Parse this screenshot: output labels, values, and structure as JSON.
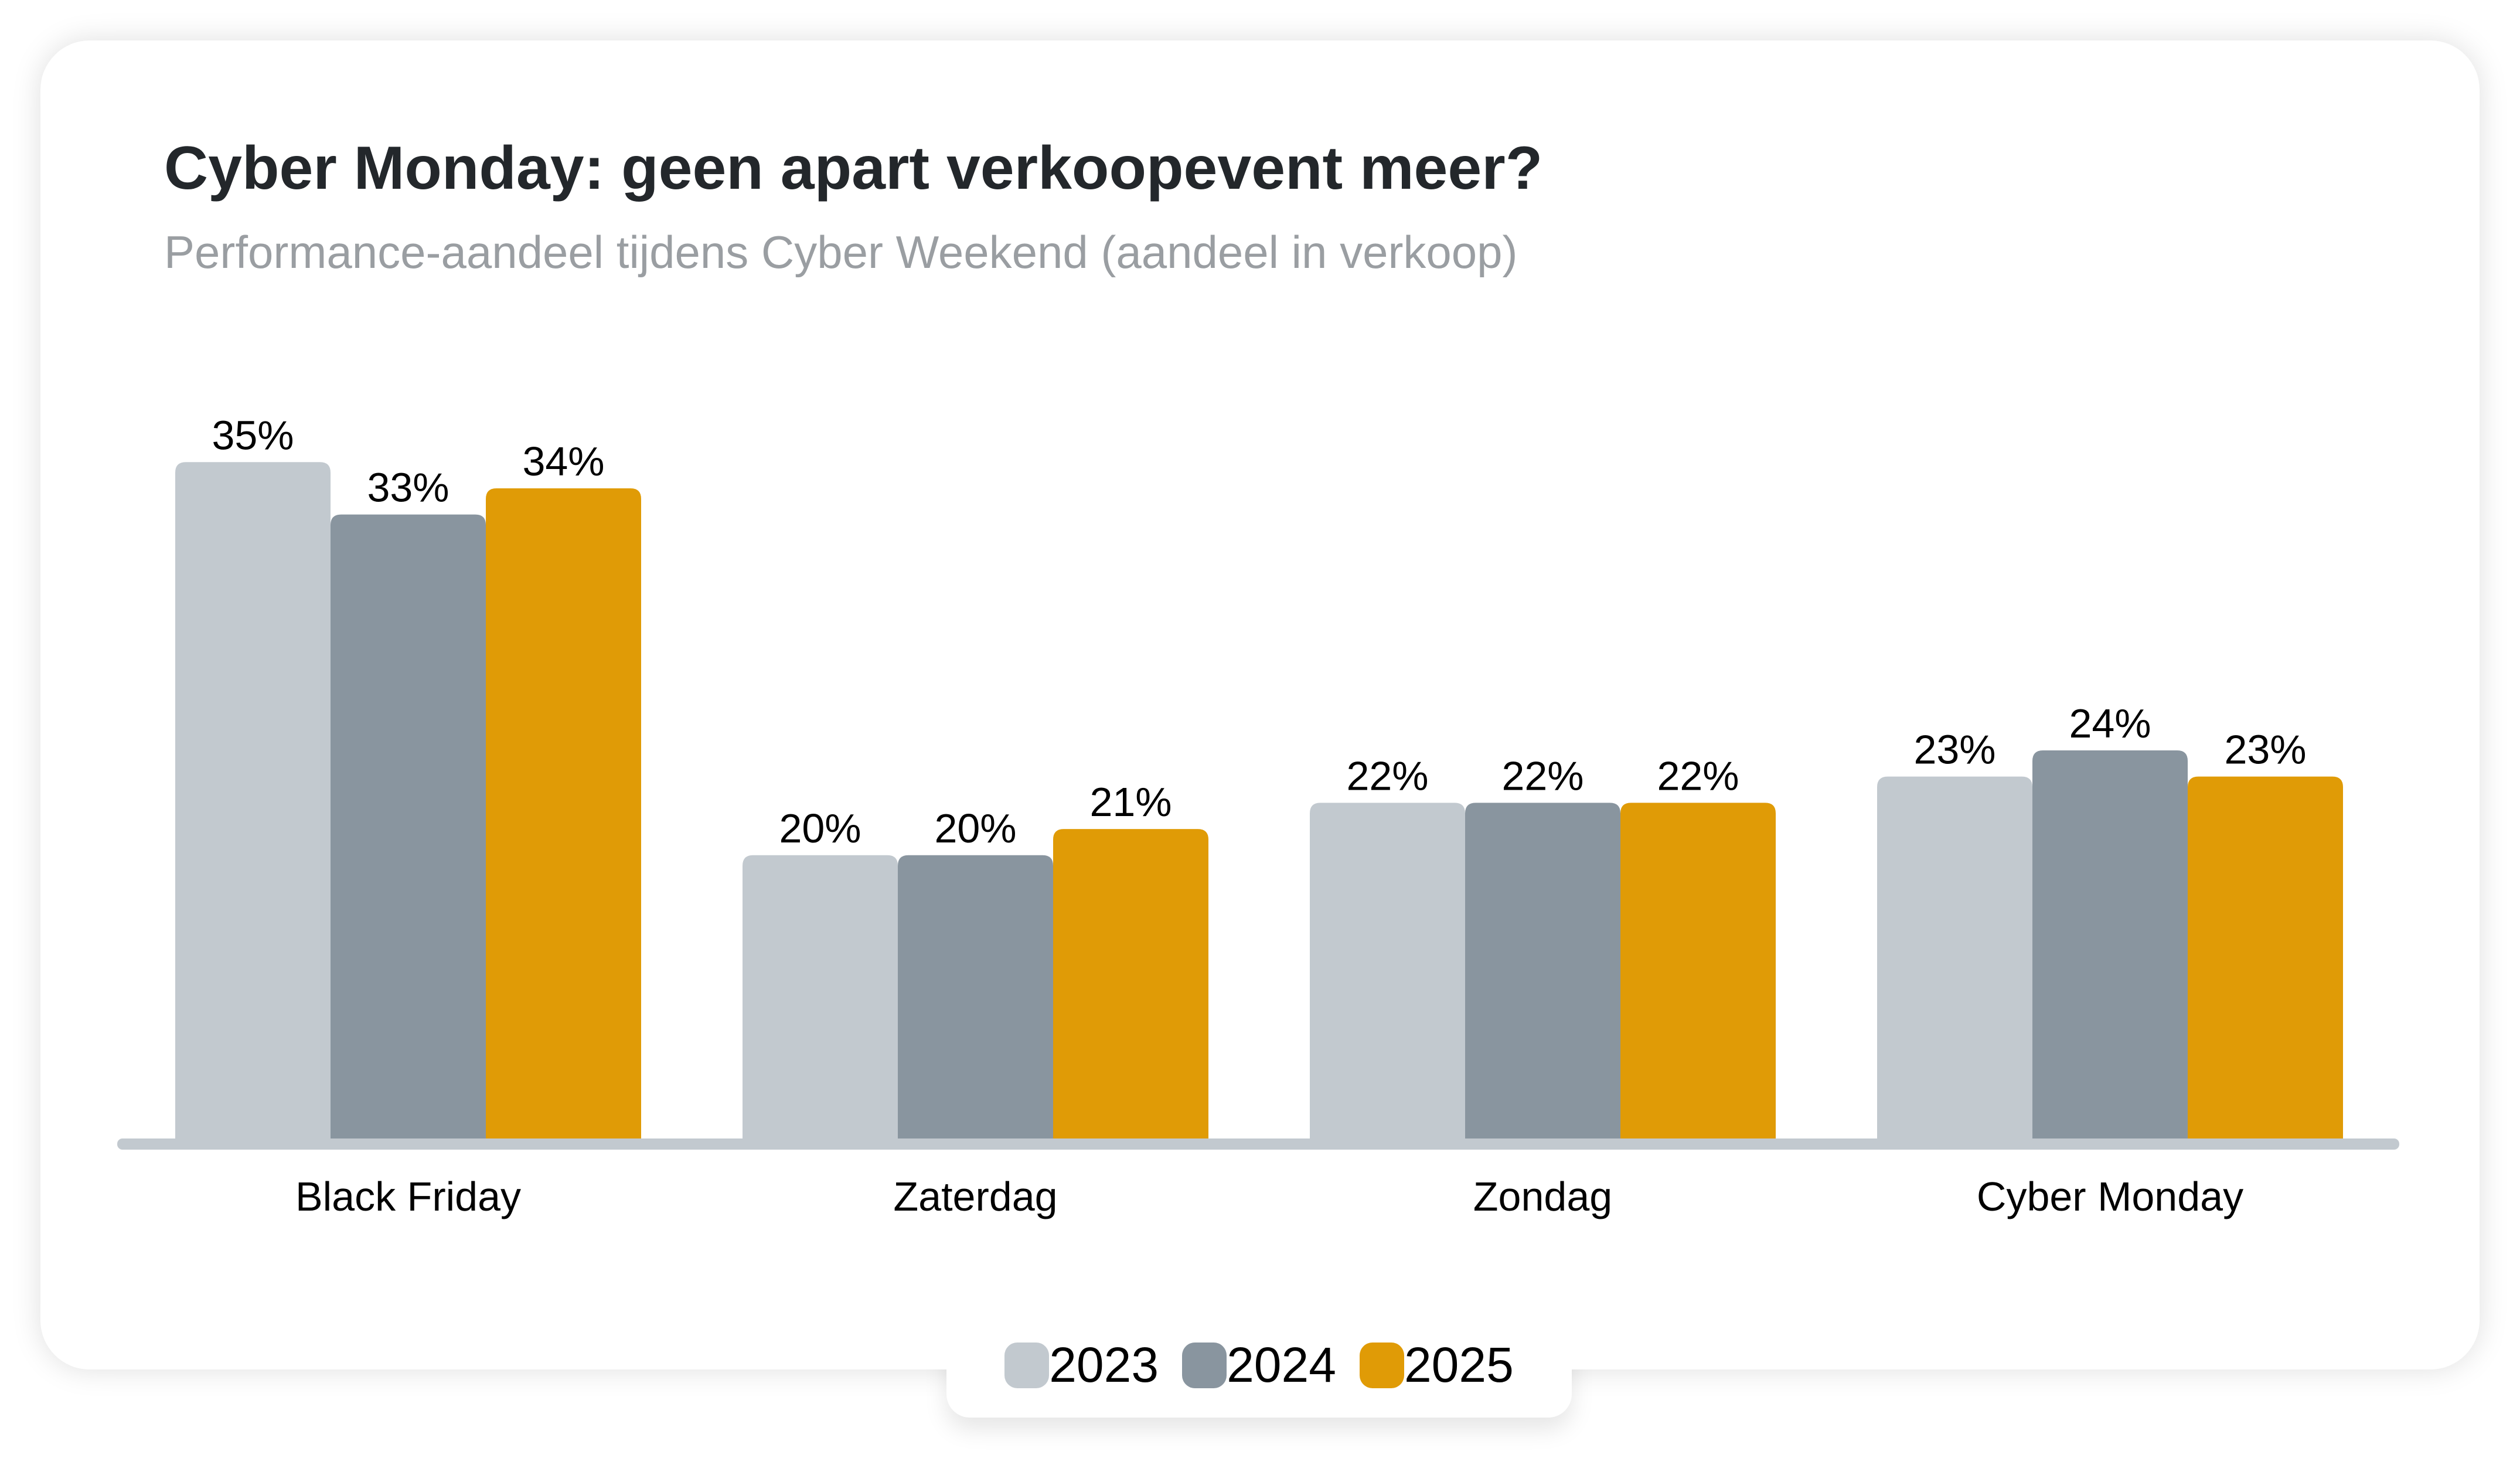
{
  "chart_data": {
    "type": "bar",
    "title": "Cyber Monday: geen apart verkoopevent meer?",
    "subtitle": "Performance-aandeel tijdens Cyber Weekend (aandeel in verkoop)",
    "xlabel": "",
    "ylabel": "",
    "ylim": [
      9.1,
      36
    ],
    "grid": false,
    "legend_position": "bottom-center",
    "categories": [
      "Black Friday",
      "Zaterdag",
      "Zondag",
      "Cyber Monday"
    ],
    "series": [
      {
        "name": "2023",
        "color": "#c2c9cf",
        "values": [
          35,
          20,
          22,
          23
        ],
        "labels": [
          "35%",
          "20%",
          "22%",
          "23%"
        ]
      },
      {
        "name": "2024",
        "color": "#89959f",
        "values": [
          33,
          20,
          22,
          24
        ],
        "labels": [
          "33%",
          "20%",
          "22%",
          "24%"
        ]
      },
      {
        "name": "2025",
        "color": "#e09b06",
        "values": [
          34,
          21,
          22,
          23
        ],
        "labels": [
          "34%",
          "21%",
          "22%",
          "23%"
        ]
      }
    ]
  }
}
